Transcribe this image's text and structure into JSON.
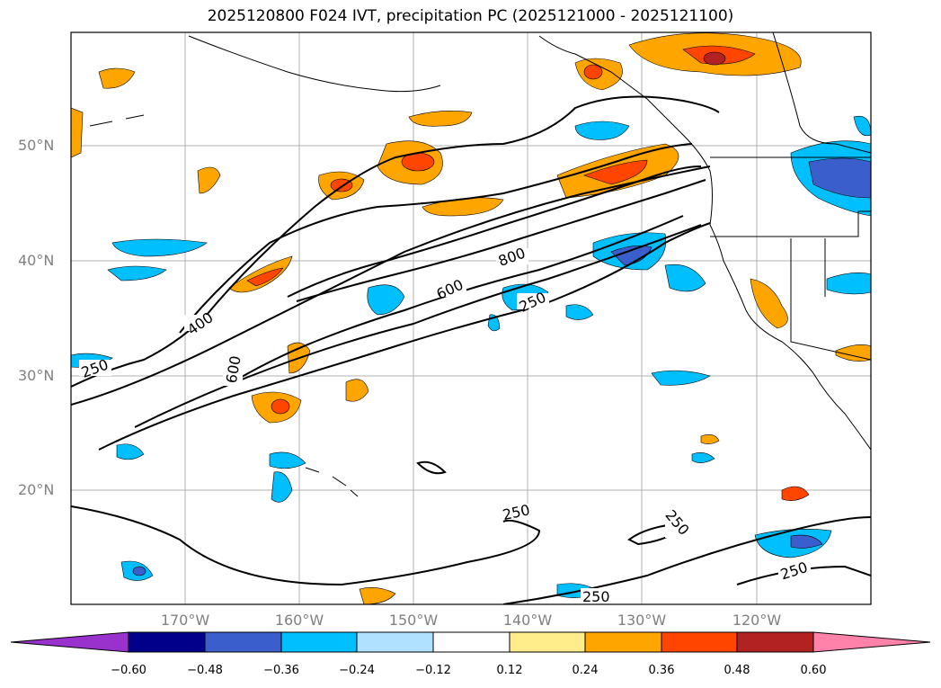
{
  "title": "2025120800 F024 IVT, precipitation PC (2025121000 - 2025121100)",
  "map": {
    "lat_labels": [
      "50°N",
      "40°N",
      "30°N",
      "20°N"
    ],
    "lon_labels": [
      "170°W",
      "160°W",
      "150°W",
      "140°W",
      "130°W",
      "120°W"
    ],
    "contour_labels": [
      "250",
      "400",
      "600",
      "800",
      "600",
      "250",
      "250",
      "250",
      "250",
      "250"
    ],
    "contour_levels": [
      250,
      400,
      600,
      800
    ]
  },
  "colorbar": {
    "ticks": [
      "−0.60",
      "−0.48",
      "−0.36",
      "−0.24",
      "−0.12",
      "0.12",
      "0.24",
      "0.36",
      "0.48",
      "0.60"
    ],
    "colors": [
      "#9932cc",
      "#00008b",
      "#3a5fcd",
      "#00bfff",
      "#b0e2ff",
      "#ffffff",
      "#ffec8b",
      "#ffa500",
      "#ff4500",
      "#b22222",
      "#ff82ab"
    ]
  }
}
